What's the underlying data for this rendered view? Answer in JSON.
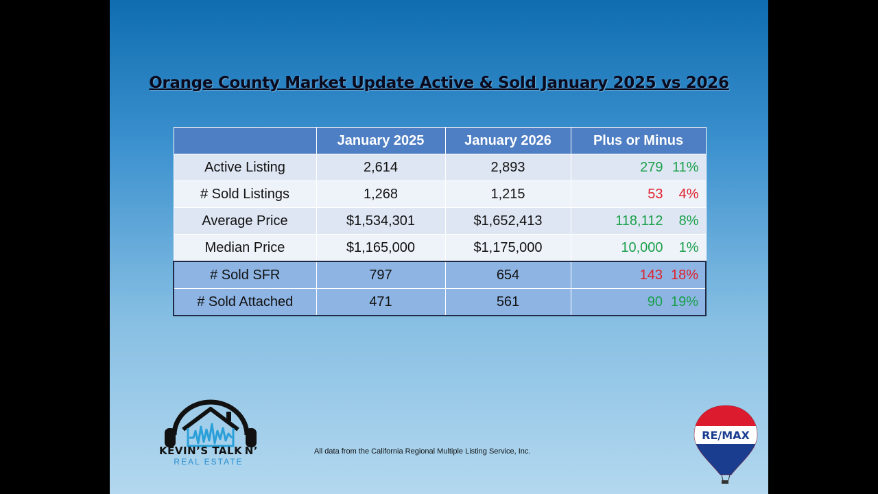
{
  "title": "Orange County Market Update Active & Sold January 2025 vs 2026",
  "table": {
    "headers": [
      "",
      "January 2025",
      "January 2026",
      "Plus or Minus"
    ],
    "rows": [
      {
        "label": "Active Listing",
        "jan2025": "2,614",
        "jan2026": "2,893",
        "change": "279",
        "percent": "11%",
        "direction": "up"
      },
      {
        "label": "# Sold Listings",
        "jan2025": "1,268",
        "jan2026": "1,215",
        "change": "53",
        "percent": "4%",
        "direction": "down"
      },
      {
        "label": "Average Price",
        "jan2025": "$1,534,301",
        "jan2026": "$1,652,413",
        "change": "118,112",
        "percent": "8%",
        "direction": "up"
      },
      {
        "label": "Median Price",
        "jan2025": "$1,165,000",
        "jan2026": "$1,175,000",
        "change": "10,000",
        "percent": "1%",
        "direction": "up"
      },
      {
        "label": "# Sold SFR",
        "jan2025": "797",
        "jan2026": "654",
        "change": "143",
        "percent": "18%",
        "direction": "down"
      },
      {
        "label": "# Sold Attached",
        "jan2025": "471",
        "jan2026": "561",
        "change": "90",
        "percent": "19%",
        "direction": "up"
      }
    ]
  },
  "footnote": "All data from the California Regional Multiple Listing Service, Inc.",
  "logo": {
    "line1": "KEVIN’S TALK N’",
    "line2": "REAL ESTATE",
    "icon": "headphones-house-icon"
  },
  "brand": {
    "text": "RE/MAX",
    "icon": "hot-air-balloon-icon"
  },
  "colors": {
    "positive": "#1aa04a",
    "negative": "#e0202a",
    "header": "#4e7ec3"
  }
}
